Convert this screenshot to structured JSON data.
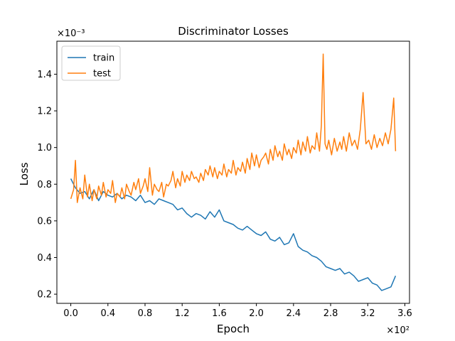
{
  "chart_data": {
    "type": "line",
    "title": "Discriminator Losses",
    "xlabel": "Epoch",
    "ylabel": "Loss",
    "x_multiplier": "×10²",
    "y_multiplier": "×10⁻³",
    "xlim": [
      -15,
      365
    ],
    "ylim": [
      0.00015,
      0.00158
    ],
    "xticks": [
      0,
      40,
      80,
      120,
      160,
      200,
      240,
      280,
      320,
      360
    ],
    "xtick_labels": [
      "0.0",
      "0.4",
      "0.8",
      "1.2",
      "1.6",
      "2.0",
      "2.4",
      "2.8",
      "3.2",
      "3.6"
    ],
    "yticks": [
      0.0002,
      0.0004,
      0.0006,
      0.0008,
      0.001,
      0.0012,
      0.0014
    ],
    "ytick_labels": [
      "0.2",
      "0.4",
      "0.6",
      "0.8",
      "1.0",
      "1.2",
      "1.4"
    ],
    "grid": false,
    "legend_position": "top-left",
    "series": [
      {
        "name": "train",
        "color": "#1f77b4",
        "x": [
          0,
          5,
          10,
          15,
          20,
          25,
          30,
          35,
          40,
          45,
          50,
          55,
          60,
          65,
          70,
          75,
          80,
          85,
          90,
          95,
          100,
          105,
          110,
          115,
          120,
          125,
          130,
          135,
          140,
          145,
          150,
          155,
          160,
          165,
          170,
          175,
          180,
          185,
          190,
          195,
          200,
          205,
          210,
          215,
          220,
          225,
          230,
          235,
          240,
          245,
          250,
          255,
          260,
          265,
          270,
          275,
          280,
          285,
          290,
          295,
          300,
          305,
          310,
          315,
          320,
          325,
          330,
          335,
          340,
          345,
          350
        ],
        "y": [
          0.00083,
          0.00078,
          0.00075,
          0.00076,
          0.00072,
          0.00077,
          0.00071,
          0.00076,
          0.00074,
          0.00073,
          0.00075,
          0.00072,
          0.00074,
          0.00073,
          0.00071,
          0.00074,
          0.0007,
          0.00071,
          0.00069,
          0.00072,
          0.00071,
          0.0007,
          0.00069,
          0.00066,
          0.00067,
          0.00064,
          0.00062,
          0.00064,
          0.00063,
          0.00061,
          0.00065,
          0.00062,
          0.00066,
          0.0006,
          0.00059,
          0.00058,
          0.00056,
          0.00055,
          0.00057,
          0.00055,
          0.00053,
          0.00052,
          0.00054,
          0.0005,
          0.00049,
          0.00051,
          0.00047,
          0.00048,
          0.00053,
          0.00046,
          0.00044,
          0.00043,
          0.00041,
          0.0004,
          0.00038,
          0.00035,
          0.00034,
          0.00033,
          0.00034,
          0.00031,
          0.00032,
          0.0003,
          0.00027,
          0.00028,
          0.00029,
          0.00026,
          0.00025,
          0.00022,
          0.00023,
          0.00024,
          0.0003
        ]
      },
      {
        "name": "test",
        "color": "#ff7f0e",
        "x": [
          0,
          3,
          5,
          7,
          10,
          13,
          15,
          18,
          20,
          23,
          25,
          28,
          30,
          33,
          35,
          38,
          40,
          43,
          45,
          48,
          50,
          53,
          55,
          58,
          60,
          63,
          65,
          68,
          70,
          73,
          75,
          78,
          80,
          83,
          85,
          88,
          90,
          93,
          95,
          98,
          100,
          103,
          105,
          108,
          110,
          113,
          115,
          118,
          120,
          123,
          125,
          128,
          130,
          133,
          135,
          138,
          140,
          143,
          145,
          148,
          150,
          153,
          155,
          158,
          160,
          163,
          165,
          168,
          170,
          173,
          175,
          178,
          180,
          183,
          185,
          188,
          190,
          193,
          195,
          198,
          200,
          203,
          205,
          208,
          210,
          213,
          215,
          218,
          220,
          223,
          225,
          228,
          230,
          233,
          235,
          238,
          240,
          243,
          245,
          248,
          250,
          253,
          255,
          258,
          260,
          263,
          265,
          268,
          270,
          272,
          274,
          276,
          278,
          281,
          284,
          287,
          290,
          292,
          294,
          297,
          300,
          303,
          306,
          309,
          312,
          315,
          318,
          321,
          324,
          327,
          330,
          333,
          336,
          339,
          342,
          345,
          348,
          350
        ],
        "y": [
          0.00072,
          0.00077,
          0.00093,
          0.0007,
          0.00078,
          0.00072,
          0.00085,
          0.00073,
          0.0008,
          0.00071,
          0.00077,
          0.00072,
          0.00079,
          0.00074,
          0.00081,
          0.00073,
          0.00077,
          0.00075,
          0.00082,
          0.0007,
          0.00075,
          0.00073,
          0.00078,
          0.00072,
          0.0008,
          0.00076,
          0.00074,
          0.00081,
          0.00077,
          0.00083,
          0.00075,
          0.00079,
          0.00083,
          0.00076,
          0.00089,
          0.00074,
          0.0008,
          0.00077,
          0.00076,
          0.00081,
          0.00073,
          0.0008,
          0.00079,
          0.00082,
          0.00087,
          0.00078,
          0.00083,
          0.00079,
          0.00087,
          0.00081,
          0.00085,
          0.00082,
          0.00087,
          0.00083,
          0.00084,
          0.00081,
          0.00086,
          0.00082,
          0.00088,
          0.00085,
          0.0009,
          0.00084,
          0.00089,
          0.00083,
          0.00087,
          0.00085,
          0.00091,
          0.00084,
          0.00088,
          0.00086,
          0.00093,
          0.00085,
          0.00089,
          0.00087,
          0.00092,
          0.00086,
          0.00094,
          0.00088,
          0.00097,
          0.0009,
          0.00096,
          0.00089,
          0.00093,
          0.00095,
          0.00097,
          0.00091,
          0.00099,
          0.00093,
          0.00101,
          0.00095,
          0.00098,
          0.00093,
          0.00102,
          0.00096,
          0.00099,
          0.00094,
          0.001,
          0.00097,
          0.00104,
          0.00096,
          0.00103,
          0.00098,
          0.00106,
          0.00097,
          0.00101,
          0.00099,
          0.00108,
          0.00098,
          0.00112,
          0.00151,
          0.00102,
          0.00099,
          0.00104,
          0.00096,
          0.00105,
          0.00098,
          0.00103,
          0.00099,
          0.00106,
          0.00098,
          0.00108,
          0.00101,
          0.00104,
          0.00099,
          0.0011,
          0.0013,
          0.00102,
          0.00104,
          0.00099,
          0.00107,
          0.001,
          0.00105,
          0.00101,
          0.00108,
          0.00102,
          0.0011,
          0.00127,
          0.00098
        ]
      }
    ]
  }
}
